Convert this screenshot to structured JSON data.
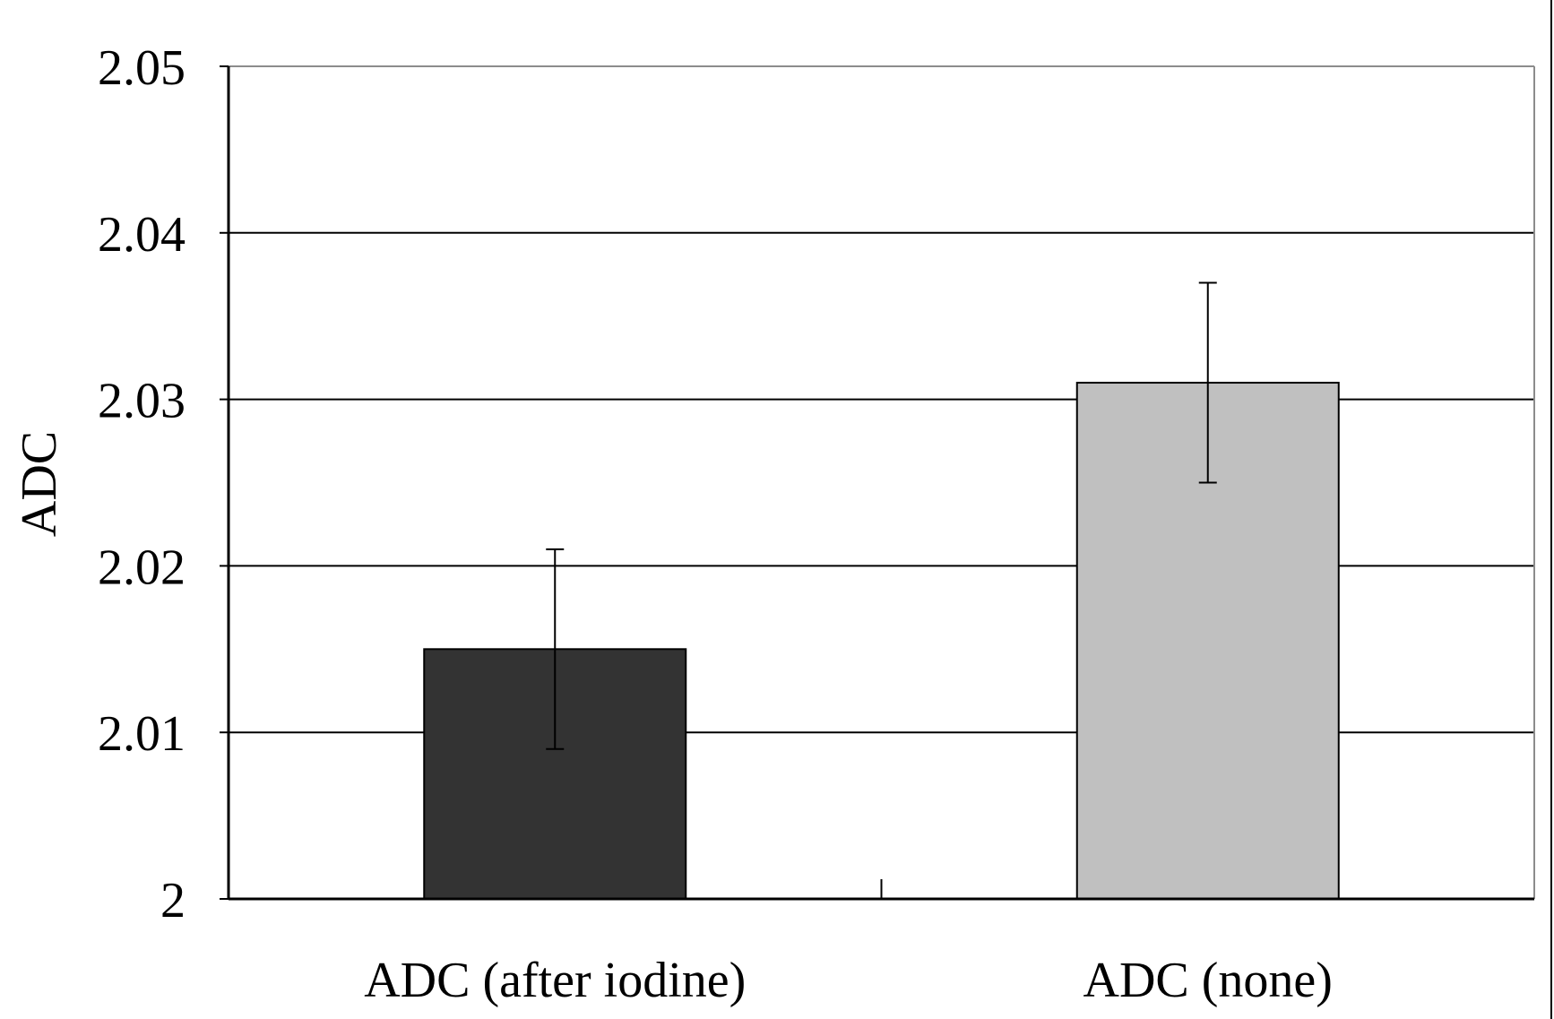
{
  "chart_data": {
    "type": "bar",
    "title": "",
    "xlabel": "",
    "ylabel": "ADC",
    "categories": [
      "ADC (after iodine)",
      "ADC (none)"
    ],
    "values": [
      2.015,
      2.031
    ],
    "error": [
      0.006,
      0.006
    ],
    "bar_colors": [
      "#333333",
      "#c0c0c0"
    ],
    "ylim": [
      2,
      2.05
    ],
    "yticks": [
      2,
      2.01,
      2.02,
      2.03,
      2.04,
      2.05
    ],
    "ytick_labels": [
      "2",
      "2.01",
      "2.02",
      "2.03",
      "2.04",
      "2.05"
    ],
    "grid": true,
    "legend": "none"
  }
}
